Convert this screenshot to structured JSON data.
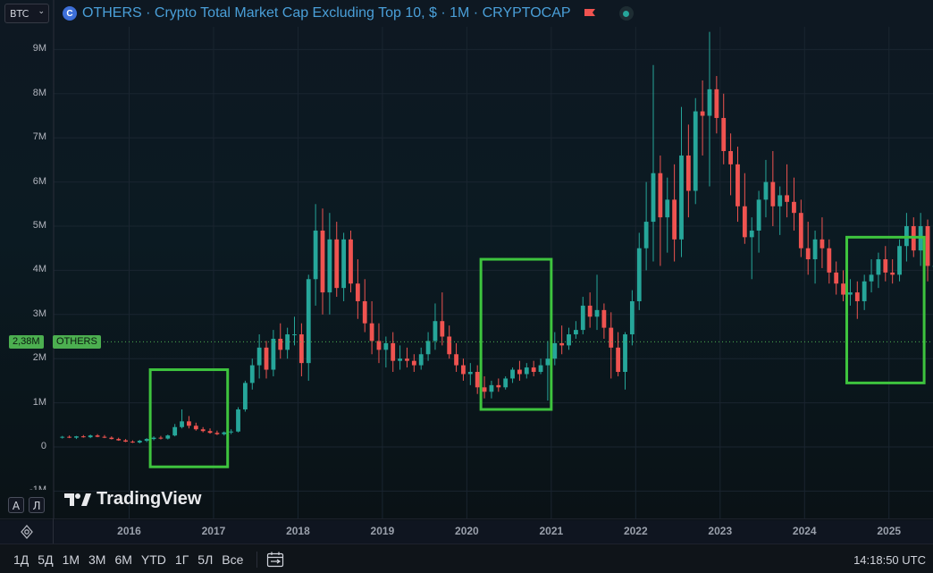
{
  "toolbar": {
    "symbol_select": "BTC",
    "title": "OTHERS · Crypto Total Market Cap Excluding Top 10, $ · 1M · CRYPTOCAP",
    "coin_glyph": "C"
  },
  "price": {
    "current_label": "2,38M",
    "symbol_label": "OTHERS",
    "current_value_millions": 2.38
  },
  "scale_buttons": {
    "auto": "A",
    "log": "Л"
  },
  "logo_text": "TradingView",
  "timeframes": [
    "1Д",
    "5Д",
    "1M",
    "3M",
    "6M",
    "YTD",
    "1Г",
    "5Л",
    "Все"
  ],
  "clock": "14:18:50 UTC",
  "colors": {
    "up": "#26a69a",
    "down": "#ef5350",
    "highlight_box": "#3ec43e",
    "accent": "#4a9fd8",
    "price_tag": "#4caf50"
  },
  "chart_data": {
    "type": "candlestick",
    "title": "OTHERS · Crypto Total Market Cap Excluding Top 10, $ · 1M · CRYPTOCAP",
    "interval": "1M",
    "y_tick_labels": [
      "-1M",
      "0",
      "1M",
      "2M",
      "3M",
      "4M",
      "5M",
      "6M",
      "7M",
      "8M",
      "9M"
    ],
    "y_ticks": [
      -1,
      0,
      1,
      2,
      3,
      4,
      5,
      6,
      7,
      8,
      9
    ],
    "y_unit": "M",
    "ylim": [
      -1,
      9.4
    ],
    "x_tick_labels": [
      "2016",
      "2017",
      "2018",
      "2019",
      "2020",
      "2021",
      "2022",
      "2023",
      "2024",
      "2025"
    ],
    "x_range_years": [
      2015.17,
      2025.5
    ],
    "start_month": "2015-03",
    "grid": true,
    "candles_ohlc_millions": [
      [
        0.22,
        0.25,
        0.19,
        0.23
      ],
      [
        0.23,
        0.26,
        0.2,
        0.21
      ],
      [
        0.21,
        0.25,
        0.18,
        0.24
      ],
      [
        0.24,
        0.27,
        0.21,
        0.22
      ],
      [
        0.22,
        0.28,
        0.2,
        0.26
      ],
      [
        0.26,
        0.29,
        0.22,
        0.23
      ],
      [
        0.23,
        0.27,
        0.2,
        0.21
      ],
      [
        0.21,
        0.24,
        0.17,
        0.18
      ],
      [
        0.18,
        0.21,
        0.14,
        0.15
      ],
      [
        0.15,
        0.18,
        0.11,
        0.12
      ],
      [
        0.12,
        0.15,
        0.09,
        0.1
      ],
      [
        0.1,
        0.16,
        0.08,
        0.14
      ],
      [
        0.14,
        0.2,
        0.11,
        0.18
      ],
      [
        0.18,
        0.24,
        0.15,
        0.21
      ],
      [
        0.21,
        0.25,
        0.17,
        0.19
      ],
      [
        0.19,
        0.28,
        0.17,
        0.26
      ],
      [
        0.26,
        0.52,
        0.24,
        0.45
      ],
      [
        0.45,
        0.85,
        0.42,
        0.58
      ],
      [
        0.58,
        0.7,
        0.42,
        0.48
      ],
      [
        0.48,
        0.55,
        0.37,
        0.4
      ],
      [
        0.4,
        0.45,
        0.33,
        0.36
      ],
      [
        0.36,
        0.42,
        0.3,
        0.32
      ],
      [
        0.32,
        0.37,
        0.27,
        0.29
      ],
      [
        0.29,
        0.35,
        0.26,
        0.33
      ],
      [
        0.33,
        0.4,
        0.29,
        0.35
      ],
      [
        0.35,
        0.9,
        0.33,
        0.85
      ],
      [
        0.85,
        1.5,
        0.8,
        1.45
      ],
      [
        1.45,
        2.0,
        1.3,
        1.85
      ],
      [
        1.85,
        2.55,
        1.55,
        2.25
      ],
      [
        2.25,
        2.4,
        1.55,
        1.75
      ],
      [
        1.75,
        2.65,
        1.6,
        2.45
      ],
      [
        2.45,
        2.8,
        2.0,
        2.2
      ],
      [
        2.2,
        2.7,
        2.0,
        2.55
      ],
      [
        2.55,
        2.95,
        2.3,
        2.55
      ],
      [
        2.55,
        2.8,
        1.6,
        1.9
      ],
      [
        1.9,
        3.9,
        1.5,
        3.8
      ],
      [
        3.8,
        5.5,
        3.2,
        4.9
      ],
      [
        4.9,
        5.4,
        3.0,
        3.5
      ],
      [
        3.5,
        5.3,
        3.0,
        4.7
      ],
      [
        4.7,
        5.1,
        3.4,
        3.6
      ],
      [
        3.6,
        4.85,
        3.3,
        4.7
      ],
      [
        4.7,
        4.9,
        3.5,
        3.7
      ],
      [
        3.7,
        4.25,
        2.9,
        3.3
      ],
      [
        3.3,
        3.8,
        2.6,
        2.8
      ],
      [
        2.8,
        3.3,
        2.1,
        2.4
      ],
      [
        2.4,
        2.8,
        1.9,
        2.2
      ],
      [
        2.2,
        2.5,
        1.8,
        2.35
      ],
      [
        2.35,
        2.6,
        1.7,
        1.95
      ],
      [
        1.95,
        2.3,
        1.75,
        2.0
      ],
      [
        2.0,
        2.25,
        1.8,
        1.95
      ],
      [
        1.95,
        2.1,
        1.7,
        1.85
      ],
      [
        1.85,
        2.25,
        1.75,
        2.1
      ],
      [
        2.1,
        2.6,
        1.95,
        2.4
      ],
      [
        2.4,
        3.25,
        2.2,
        2.85
      ],
      [
        2.85,
        3.5,
        2.3,
        2.5
      ],
      [
        2.5,
        2.75,
        2.0,
        2.1
      ],
      [
        2.1,
        2.35,
        1.7,
        1.85
      ],
      [
        1.85,
        2.0,
        1.5,
        1.65
      ],
      [
        1.65,
        1.9,
        1.4,
        1.7
      ],
      [
        1.7,
        1.85,
        1.2,
        1.35
      ],
      [
        1.35,
        1.6,
        1.1,
        1.25
      ],
      [
        1.25,
        1.5,
        1.1,
        1.4
      ],
      [
        1.4,
        1.55,
        1.25,
        1.35
      ],
      [
        1.35,
        1.6,
        1.3,
        1.55
      ],
      [
        1.55,
        1.8,
        1.45,
        1.75
      ],
      [
        1.75,
        1.95,
        1.5,
        1.65
      ],
      [
        1.65,
        1.9,
        1.55,
        1.8
      ],
      [
        1.8,
        1.95,
        1.6,
        1.7
      ],
      [
        1.7,
        2.0,
        1.65,
        1.85
      ],
      [
        1.85,
        2.4,
        1.05,
        2.0
      ],
      [
        2.0,
        2.6,
        1.85,
        2.35
      ],
      [
        2.35,
        2.75,
        2.1,
        2.3
      ],
      [
        2.3,
        2.7,
        2.2,
        2.55
      ],
      [
        2.55,
        2.85,
        2.45,
        2.65
      ],
      [
        2.65,
        3.4,
        2.55,
        3.2
      ],
      [
        3.2,
        3.5,
        2.7,
        2.95
      ],
      [
        2.95,
        3.9,
        2.65,
        3.1
      ],
      [
        3.1,
        3.25,
        2.45,
        2.7
      ],
      [
        2.7,
        3.05,
        1.55,
        2.25
      ],
      [
        2.25,
        2.6,
        1.6,
        1.7
      ],
      [
        1.7,
        2.6,
        1.3,
        2.55
      ],
      [
        2.55,
        3.55,
        2.3,
        3.3
      ],
      [
        3.3,
        4.85,
        3.1,
        4.5
      ],
      [
        4.5,
        6.0,
        4.0,
        5.1
      ],
      [
        5.1,
        8.65,
        4.2,
        6.2
      ],
      [
        6.2,
        6.6,
        4.1,
        5.2
      ],
      [
        5.2,
        6.1,
        4.4,
        5.6
      ],
      [
        5.6,
        6.4,
        4.2,
        4.7
      ],
      [
        4.7,
        7.7,
        4.3,
        6.6
      ],
      [
        6.6,
        7.3,
        5.2,
        5.8
      ],
      [
        5.8,
        7.9,
        5.5,
        7.6
      ],
      [
        7.6,
        8.3,
        6.6,
        7.5
      ],
      [
        7.5,
        9.4,
        5.9,
        8.1
      ],
      [
        8.1,
        8.4,
        7.1,
        7.45
      ],
      [
        7.45,
        8.0,
        6.4,
        6.7
      ],
      [
        6.7,
        7.1,
        5.7,
        6.4
      ],
      [
        6.4,
        6.8,
        5.1,
        5.45
      ],
      [
        5.45,
        6.2,
        4.6,
        4.75
      ],
      [
        4.75,
        5.2,
        3.8,
        4.9
      ],
      [
        4.9,
        5.8,
        4.4,
        5.6
      ],
      [
        5.6,
        6.5,
        5.2,
        6.0
      ],
      [
        6.0,
        6.7,
        5.0,
        5.45
      ],
      [
        5.45,
        5.9,
        4.8,
        5.7
      ],
      [
        5.7,
        6.4,
        5.2,
        5.55
      ],
      [
        5.55,
        6.1,
        4.9,
        5.3
      ],
      [
        5.3,
        5.6,
        4.3,
        4.5
      ],
      [
        4.5,
        5.1,
        3.9,
        4.25
      ],
      [
        4.25,
        4.9,
        3.7,
        4.7
      ],
      [
        4.7,
        5.2,
        4.05,
        4.5
      ],
      [
        4.5,
        4.7,
        3.7,
        3.95
      ],
      [
        3.95,
        4.2,
        3.45,
        3.7
      ],
      [
        3.7,
        4.0,
        3.3,
        3.45
      ],
      [
        3.45,
        3.8,
        3.2,
        3.5
      ],
      [
        3.5,
        3.75,
        2.9,
        3.3
      ],
      [
        3.3,
        3.9,
        3.1,
        3.75
      ],
      [
        3.75,
        4.25,
        3.5,
        3.9
      ],
      [
        3.9,
        4.4,
        3.6,
        4.25
      ],
      [
        4.25,
        4.55,
        3.75,
        3.95
      ],
      [
        3.95,
        4.25,
        3.7,
        3.9
      ],
      [
        3.9,
        4.7,
        3.75,
        4.55
      ],
      [
        4.55,
        5.3,
        4.2,
        5.0
      ],
      [
        5.0,
        5.2,
        4.3,
        4.45
      ],
      [
        4.45,
        5.3,
        4.1,
        5.0
      ],
      [
        5.0,
        5.15,
        3.75,
        4.1
      ],
      [
        4.1,
        4.75,
        3.6,
        4.1
      ],
      [
        4.1,
        4.3,
        3.7,
        4.0
      ],
      [
        4.0,
        4.2,
        3.4,
        3.7
      ],
      [
        3.7,
        4.1,
        2.8,
        3.3
      ],
      [
        3.3,
        3.6,
        2.6,
        3.0
      ],
      [
        3.0,
        3.55,
        2.7,
        3.3
      ],
      [
        3.3,
        3.45,
        2.85,
        2.95
      ],
      [
        2.95,
        3.8,
        2.9,
        3.6
      ],
      [
        3.6,
        3.9,
        2.8,
        3.3
      ],
      [
        3.3,
        4.65,
        3.1,
        3.75
      ],
      [
        3.75,
        4.15,
        3.3,
        3.5
      ],
      [
        3.5,
        3.95,
        2.9,
        3.15
      ],
      [
        3.15,
        3.45,
        2.2,
        2.75
      ],
      [
        2.75,
        3.05,
        2.4,
        2.55
      ],
      [
        2.55,
        2.9,
        2.25,
        2.4
      ],
      [
        2.4,
        2.65,
        2.2,
        2.38
      ]
    ],
    "highlight_boxes_dates": [
      {
        "from": "2016-04",
        "to": "2017-03",
        "low_millions": -0.45,
        "high_millions": 1.75
      },
      {
        "from": "2020-03",
        "to": "2021-01",
        "low_millions": 0.85,
        "high_millions": 4.25
      },
      {
        "from": "2024-07",
        "to": "2025-06",
        "low_millions": 1.45,
        "high_millions": 4.75
      }
    ]
  }
}
